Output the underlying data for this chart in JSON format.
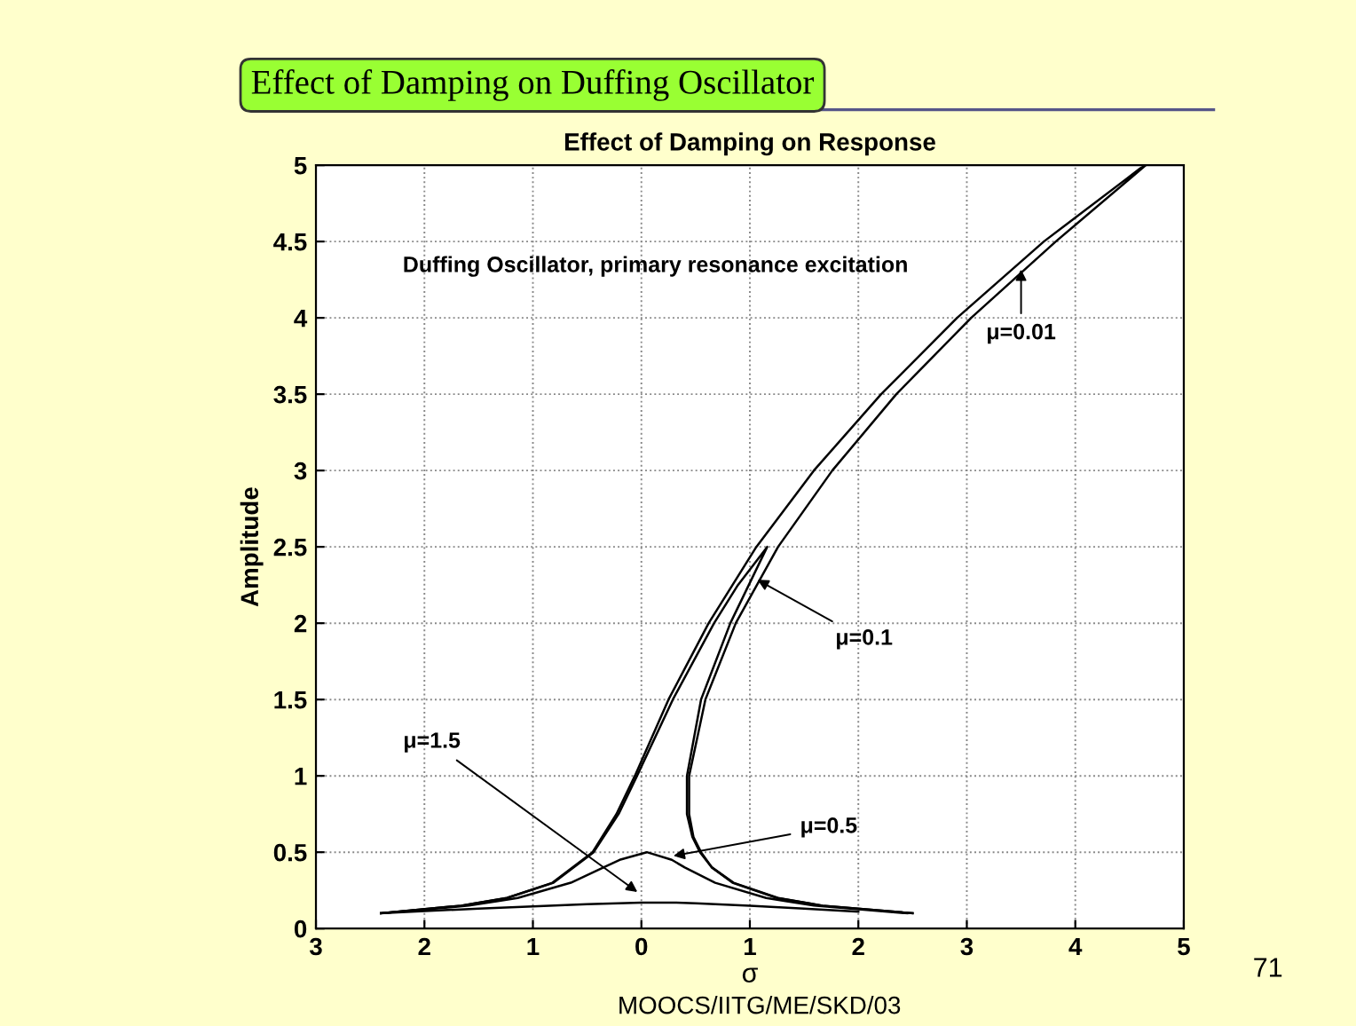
{
  "chart_data": {
    "type": "line",
    "title": "Effect of Damping on Duffing Oscillator",
    "subtitle": "Effect of Damping on Response",
    "xlabel": "σ",
    "ylabel": "Amplitude",
    "series": [
      {
        "color": "#000000",
        "x": [
          -2.4,
          -1.66,
          -1.24,
          -0.82,
          -0.45,
          -0.23,
          -0.06,
          0.25,
          0.62,
          1.06,
          1.59,
          2.21,
          2.91,
          3.71,
          4.6,
          4.65,
          3.82,
          3.04,
          2.35,
          1.76,
          1.26,
          0.87,
          0.59,
          0.44,
          0.44,
          0.48,
          0.55,
          0.65,
          0.85,
          1.26,
          1.67,
          2.5
        ],
        "values": [
          0.1,
          0.15,
          0.2,
          0.3,
          0.5,
          0.75,
          1,
          1.5,
          2,
          2.5,
          3,
          3.5,
          4,
          4.5,
          4.98,
          5,
          4.5,
          4,
          3.5,
          3,
          2.5,
          2,
          1.5,
          1,
          0.75,
          0.6,
          0.5,
          0.4,
          0.3,
          0.2,
          0.15,
          0.1
        ]
      },
      {
        "color": "#000000",
        "x": [
          -2.4,
          -1.66,
          -1.24,
          -0.81,
          -0.44,
          -0.21,
          -0.04,
          0.29,
          0.67,
          0.89,
          1.16,
          0.99,
          0.82,
          0.55,
          0.42,
          0.42,
          0.47,
          0.54,
          0.65,
          0.84,
          1.25,
          1.67,
          2.5
        ],
        "values": [
          0.1,
          0.15,
          0.2,
          0.3,
          0.5,
          0.75,
          1,
          1.5,
          2,
          2.25,
          2.5,
          2.25,
          2,
          1.5,
          1,
          0.75,
          0.6,
          0.5,
          0.4,
          0.3,
          0.2,
          0.15,
          0.1
        ]
      },
      {
        "color": "#000000",
        "x": [
          -2.4,
          -1.59,
          -1.14,
          -0.65,
          -0.35,
          -0.2,
          0.05,
          0.28,
          0.4,
          0.68,
          1.15,
          1.59,
          2.45
        ],
        "values": [
          0.1,
          0.15,
          0.2,
          0.3,
          0.4,
          0.45,
          0.5,
          0.45,
          0.4,
          0.3,
          0.2,
          0.15,
          0.1
        ]
      },
      {
        "color": "#000000",
        "x": [
          -2.4,
          -2,
          -1.5,
          -1,
          -0.5,
          0,
          0.3,
          0.5,
          1,
          1.5,
          2
        ],
        "values": [
          0.1,
          0.115,
          0.13,
          0.145,
          0.16,
          0.17,
          0.17,
          0.165,
          0.15,
          0.13,
          0.11
        ]
      }
    ],
    "xlim": [
      -3,
      5
    ],
    "ylim": [
      0,
      5
    ],
    "xticks": [
      {
        "value": -3,
        "label": "3"
      },
      {
        "value": -2,
        "label": "2"
      },
      {
        "value": -1,
        "label": "1"
      },
      0,
      1,
      2,
      3,
      4,
      5
    ],
    "yticks": [
      0,
      0.5,
      1,
      1.5,
      2,
      2.5,
      3,
      3.5,
      4,
      4.5,
      5
    ],
    "grid": true,
    "marker": "none",
    "line_style": "solid",
    "annotations": [
      {
        "text": "μ=0.01",
        "x": 3.5,
        "y": 4.35
      },
      {
        "text": "μ=0.1",
        "x": 1.03,
        "y": 2.3
      },
      {
        "text": "μ=0.5",
        "x": 0.25,
        "y": 0.47
      },
      {
        "text": "μ=1.5",
        "x": 0.0,
        "y": 0.22
      },
      "Duffing Oscillator, primary resonance excitation",
      "MOOCS/IITG/ME/SKD/03",
      "71"
    ]
  }
}
